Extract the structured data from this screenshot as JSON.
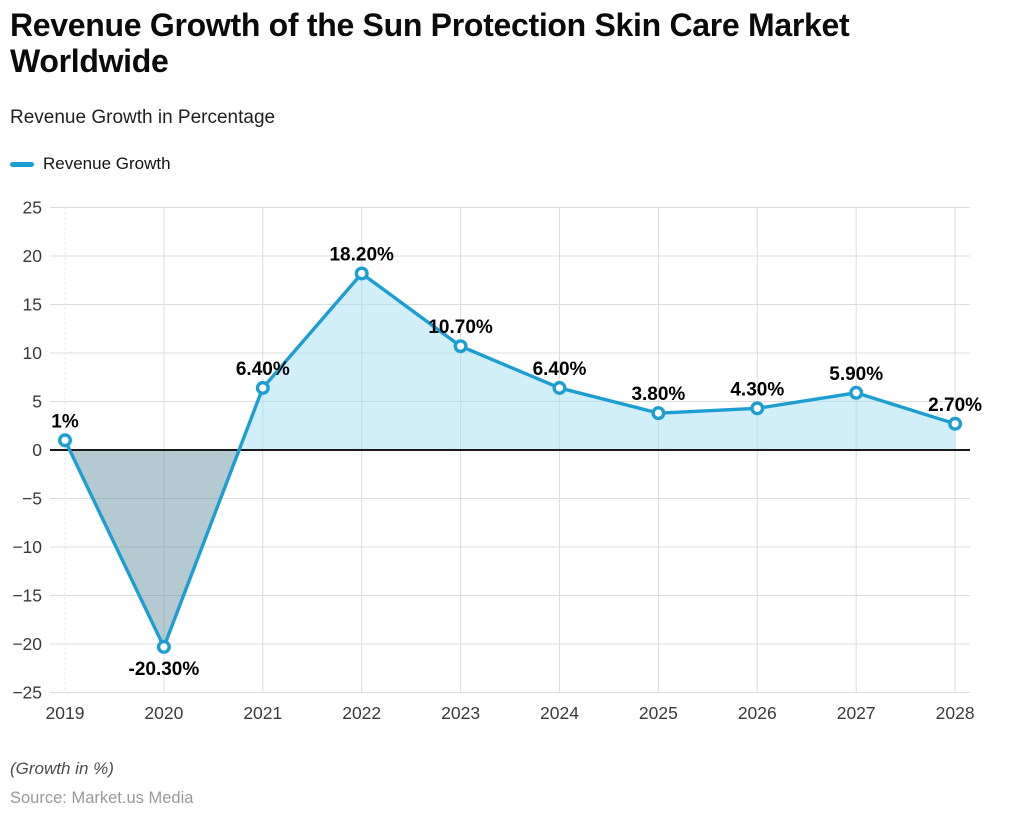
{
  "header": {
    "title": "Revenue Growth of the Sun Protection Skin Care Market Worldwide",
    "subtitle": "Revenue Growth in Percentage",
    "legend_label": "Revenue Growth"
  },
  "footer": {
    "note": "(Growth in %)",
    "source": "Source: Market.us Media"
  },
  "chart_data": {
    "type": "area",
    "title": "Revenue Growth of the Sun Protection Skin Care Market Worldwide",
    "subtitle": "Revenue Growth in Percentage",
    "x": [
      2019,
      2020,
      2021,
      2022,
      2023,
      2024,
      2025,
      2026,
      2027,
      2028
    ],
    "series": [
      {
        "name": "Revenue Growth",
        "values": [
          1,
          -20.3,
          6.4,
          18.2,
          10.7,
          6.4,
          3.8,
          4.3,
          5.9,
          2.7
        ],
        "point_labels": [
          "1%",
          "-20.30%",
          "6.40%",
          "18.20%",
          "10.70%",
          "6.40%",
          "3.80%",
          "4.30%",
          "5.90%",
          "2.70%"
        ]
      }
    ],
    "xlabel": "",
    "ylabel": "",
    "ylim": [
      -25,
      25
    ],
    "yticks": [
      25,
      20,
      15,
      10,
      5,
      0,
      -5,
      -10,
      -15,
      -20,
      -25
    ],
    "grid": true,
    "legend_position": "top-left",
    "colors": {
      "line": "#1D9ED3",
      "marker_fill": "#FFFFFF",
      "area_positive": "rgba(165,221,243,0.50)",
      "area_negative": "rgba(100,142,158,0.48)",
      "grid": "#DCDCDC",
      "grid_first_vertical": "#E3E3E3",
      "zero_line": "#1A1A1A",
      "axis_label": "#3A3A3A",
      "data_label": "#000000"
    }
  }
}
